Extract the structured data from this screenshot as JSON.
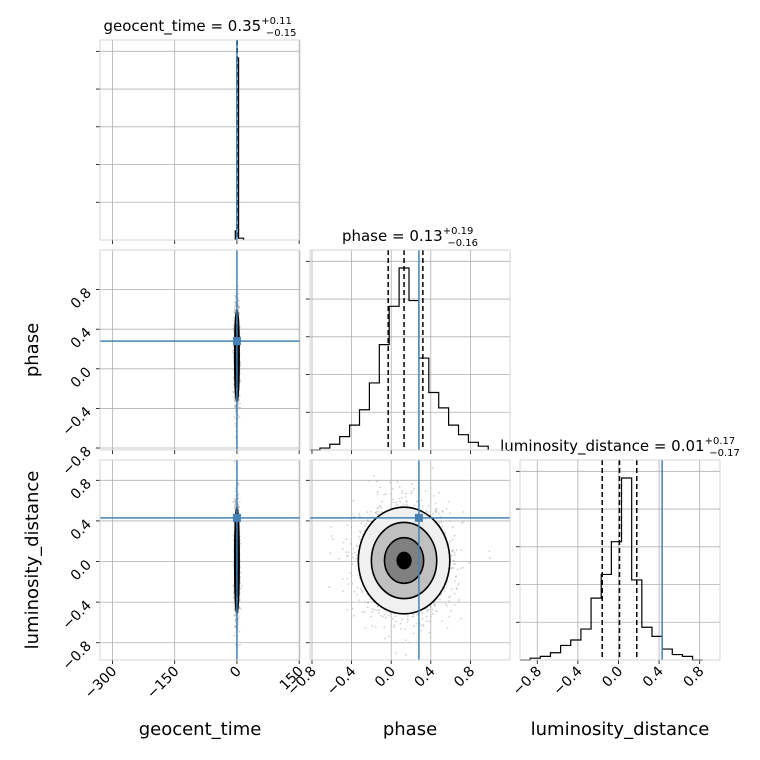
{
  "colors": {
    "truth": "#4682b4",
    "histogram": "#000000",
    "quantile": "#000000",
    "scatter": "#b3b3b3",
    "grid": "#b0b0b0",
    "contour_fill": [
      "#f0f0f0",
      "#c0c0c0",
      "#808080",
      "#000000"
    ]
  },
  "chart_data": {
    "type": "corner",
    "parameters": [
      "geocent_time",
      "phase",
      "luminosity_distance"
    ],
    "titles": [
      {
        "name": "geocent_time",
        "median": "0.35",
        "plus": "+0.11",
        "minus": "−0.15"
      },
      {
        "name": "phase",
        "median": "0.13",
        "plus": "+0.19",
        "minus": "−0.16"
      },
      {
        "name": "luminosity_distance",
        "median": "0.01",
        "plus": "+0.17",
        "minus": "−0.17"
      }
    ],
    "axis_labels": [
      "geocent_time",
      "phase",
      "luminosity_distance"
    ],
    "truths": {
      "geocent_time": 0,
      "phase": 0.28,
      "luminosity_distance": 0.43
    },
    "ranges": {
      "geocent_time": [
        -330,
        152
      ],
      "phase": [
        -0.82,
        1.2
      ],
      "luminosity_distance": [
        -0.97,
        1.0
      ]
    },
    "ticks": {
      "geocent_time": [
        "−300",
        "−150",
        "0",
        "150"
      ],
      "geocent_time_values": [
        -300,
        -150,
        0,
        150
      ],
      "phase": [
        "−0.8",
        "−0.4",
        "0.0",
        "0.4",
        "0.8"
      ],
      "phase_values": [
        -0.8,
        -0.4,
        0.0,
        0.4,
        0.8
      ],
      "luminosity_distance": [
        "−0.8",
        "−0.4",
        "0.0",
        "0.4",
        "0.8"
      ],
      "luminosity_distance_values": [
        -0.8,
        -0.4,
        0.0,
        0.4,
        0.8
      ]
    },
    "quantiles": {
      "geocent_time": [
        0.2,
        0.35,
        0.46
      ],
      "phase": [
        -0.03,
        0.13,
        0.32
      ],
      "luminosity_distance": [
        -0.16,
        0.01,
        0.18
      ]
    },
    "hist_geocent_time": {
      "edges": [
        -4,
        0,
        4,
        16
      ],
      "counts": [
        5,
        100,
        1
      ]
    },
    "hist_phase": {
      "edges": [
        -0.82,
        -0.72,
        -0.62,
        -0.52,
        -0.42,
        -0.32,
        -0.22,
        -0.12,
        -0.02,
        0.08,
        0.18,
        0.28,
        0.38,
        0.48,
        0.58,
        0.68,
        0.78,
        0.88,
        0.98
      ],
      "counts": [
        0,
        1,
        3,
        7,
        13,
        21,
        35,
        55,
        75,
        95,
        78,
        48,
        30,
        22,
        13,
        8,
        4,
        2
      ]
    },
    "hist_luminosity_distance": {
      "edges": [
        -0.97,
        -0.87,
        -0.77,
        -0.67,
        -0.57,
        -0.47,
        -0.37,
        -0.27,
        -0.17,
        -0.07,
        0.03,
        0.13,
        0.23,
        0.33,
        0.43,
        0.53,
        0.63,
        0.73,
        0.83
      ],
      "counts": [
        0,
        1,
        2,
        4,
        8,
        11,
        17,
        34,
        47,
        65,
        100,
        44,
        18,
        13,
        6,
        3,
        2,
        0
      ]
    },
    "kde_center": {
      "geocent_time": 0,
      "phase": 0.13,
      "luminosity_distance": 0.01
    },
    "kde_sigma": {
      "geocent_time": 2.5,
      "phase": 0.22,
      "luminosity_distance": 0.25
    },
    "grid": true
  }
}
